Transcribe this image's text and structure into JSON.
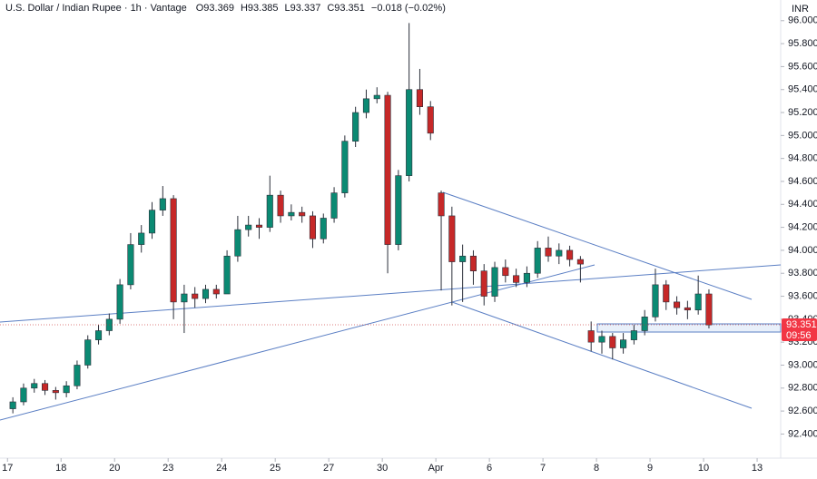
{
  "chart_data": {
    "type": "candlestick",
    "title": "U.S. Dollar / Indian Rupee · 1h · Vantage",
    "header_values": [
      "O93.369",
      "H93.385",
      "L93.337",
      "C93.351",
      "−0.018 (−0.02%)"
    ],
    "currency": "INR",
    "last_price": 93.351,
    "countdown": "09:56",
    "up_color": "#0b8a73",
    "down_color": "#c62828",
    "xlim": [
      -0.14,
      14.44
    ],
    "xticks": [
      {
        "value": 0,
        "label": "17"
      },
      {
        "value": 1,
        "label": "18"
      },
      {
        "value": 2,
        "label": "20"
      },
      {
        "value": 3,
        "label": "23"
      },
      {
        "value": 4,
        "label": "24"
      },
      {
        "value": 5,
        "label": "25"
      },
      {
        "value": 6,
        "label": "27"
      },
      {
        "value": 7,
        "label": "30"
      },
      {
        "value": 8,
        "label": "Apr"
      },
      {
        "value": 9,
        "label": "6"
      },
      {
        "value": 10,
        "label": "7"
      },
      {
        "value": 11,
        "label": "8"
      },
      {
        "value": 12,
        "label": "9"
      },
      {
        "value": 13,
        "label": "10"
      },
      {
        "value": 14,
        "label": "13"
      }
    ],
    "ylim": [
      92.19,
      96.18
    ],
    "yticks": [
      {
        "value": 92.4,
        "label": "92.400"
      },
      {
        "value": 92.6,
        "label": "92.600"
      },
      {
        "value": 92.8,
        "label": "92.800"
      },
      {
        "value": 93.0,
        "label": "93.000"
      },
      {
        "value": 93.2,
        "label": "93.200"
      },
      {
        "value": 93.4,
        "label": "93.400"
      },
      {
        "value": 93.6,
        "label": "93.600"
      },
      {
        "value": 93.8,
        "label": "93.800"
      },
      {
        "value": 94.0,
        "label": "94.000"
      },
      {
        "value": 94.2,
        "label": "94.200"
      },
      {
        "value": 94.4,
        "label": "94.400"
      },
      {
        "value": 94.6,
        "label": "94.600"
      },
      {
        "value": 94.8,
        "label": "94.800"
      },
      {
        "value": 95.0,
        "label": "95.000"
      },
      {
        "value": 95.2,
        "label": "95.200"
      },
      {
        "value": 95.4,
        "label": "95.400"
      },
      {
        "value": 95.6,
        "label": "95.600"
      },
      {
        "value": 95.8,
        "label": "95.800"
      },
      {
        "value": 96.0,
        "label": "96.000"
      }
    ],
    "candles": {
      "x": [
        0.1,
        0.3,
        0.5,
        0.7,
        0.9,
        1.1,
        1.3,
        1.5,
        1.7,
        1.9,
        2.1,
        2.3,
        2.5,
        2.7,
        2.9,
        3.1,
        3.3,
        3.5,
        3.7,
        3.9,
        4.1,
        4.3,
        4.5,
        4.7,
        4.9,
        5.1,
        5.3,
        5.5,
        5.7,
        5.9,
        6.1,
        6.3,
        6.5,
        6.7,
        6.9,
        7.1,
        7.3,
        7.5,
        7.7,
        7.9,
        8.1,
        8.3,
        8.5,
        8.7,
        8.9,
        9.1,
        9.3,
        9.5,
        9.7,
        9.9,
        10.1,
        10.3,
        10.5,
        10.7,
        10.9,
        11.1,
        11.3,
        11.5,
        11.7,
        11.9,
        12.1,
        12.3,
        12.5,
        12.7,
        12.9,
        13.1
      ],
      "open": [
        92.62,
        92.68,
        92.8,
        92.84,
        92.78,
        92.76,
        92.82,
        93.0,
        93.22,
        93.3,
        93.4,
        93.7,
        94.05,
        94.15,
        94.35,
        94.45,
        93.55,
        93.62,
        93.58,
        93.66,
        93.62,
        93.95,
        94.18,
        94.22,
        94.2,
        94.48,
        94.3,
        94.33,
        94.3,
        94.1,
        94.28,
        94.5,
        94.95,
        95.2,
        95.32,
        95.35,
        94.05,
        94.65,
        95.4,
        95.25,
        94.5,
        94.3,
        93.9,
        93.95,
        93.82,
        93.6,
        93.85,
        93.78,
        93.72,
        93.8,
        94.02,
        93.95,
        94.0,
        93.92,
        93.3,
        93.2,
        93.25,
        93.15,
        93.22,
        93.3,
        93.42,
        93.7,
        93.55,
        93.5,
        93.48,
        93.62
      ],
      "high": [
        92.72,
        92.84,
        92.88,
        92.87,
        92.81,
        92.86,
        93.04,
        93.26,
        93.35,
        93.45,
        93.75,
        94.15,
        94.22,
        94.42,
        94.56,
        94.48,
        93.7,
        93.68,
        93.7,
        93.7,
        94.0,
        94.3,
        94.3,
        94.28,
        94.65,
        94.52,
        94.4,
        94.38,
        94.34,
        94.32,
        94.55,
        95.0,
        95.25,
        95.4,
        95.42,
        95.38,
        94.7,
        95.98,
        95.58,
        95.3,
        94.52,
        94.38,
        94.05,
        94.0,
        93.88,
        93.9,
        93.92,
        93.84,
        93.86,
        94.08,
        94.12,
        94.06,
        94.04,
        93.95,
        93.38,
        93.3,
        93.28,
        93.28,
        93.35,
        93.48,
        93.84,
        93.74,
        93.6,
        93.56,
        93.78,
        93.66
      ],
      "low": [
        92.58,
        92.65,
        92.76,
        92.74,
        92.7,
        92.72,
        92.79,
        92.97,
        93.18,
        93.26,
        93.36,
        93.66,
        93.98,
        94.1,
        94.3,
        93.4,
        93.28,
        93.5,
        93.54,
        93.58,
        93.88,
        93.9,
        94.12,
        94.1,
        94.16,
        94.24,
        94.26,
        94.24,
        94.02,
        94.06,
        94.24,
        94.46,
        94.9,
        95.15,
        95.28,
        93.8,
        94.0,
        94.6,
        95.18,
        94.96,
        93.65,
        93.52,
        93.55,
        93.7,
        93.52,
        93.55,
        93.72,
        93.68,
        93.68,
        93.76,
        93.9,
        93.88,
        93.86,
        93.72,
        93.12,
        93.1,
        93.05,
        93.1,
        93.18,
        93.26,
        93.38,
        93.48,
        93.44,
        93.4,
        93.44,
        93.32
      ],
      "close": [
        92.68,
        92.8,
        92.84,
        92.78,
        92.76,
        92.82,
        93.0,
        93.22,
        93.3,
        93.4,
        93.7,
        94.05,
        94.15,
        94.35,
        94.45,
        93.55,
        93.62,
        93.58,
        93.66,
        93.62,
        93.95,
        94.18,
        94.22,
        94.2,
        94.48,
        94.3,
        94.33,
        94.3,
        94.1,
        94.28,
        94.5,
        94.95,
        95.2,
        95.32,
        95.35,
        94.05,
        94.65,
        95.4,
        95.25,
        95.02,
        94.3,
        93.9,
        93.95,
        93.82,
        93.6,
        93.85,
        93.78,
        93.72,
        93.8,
        94.02,
        93.95,
        94.0,
        93.92,
        93.88,
        93.2,
        93.25,
        93.15,
        93.22,
        93.3,
        93.42,
        93.7,
        93.55,
        93.5,
        93.48,
        93.62,
        93.35
      ]
    }
  }
}
